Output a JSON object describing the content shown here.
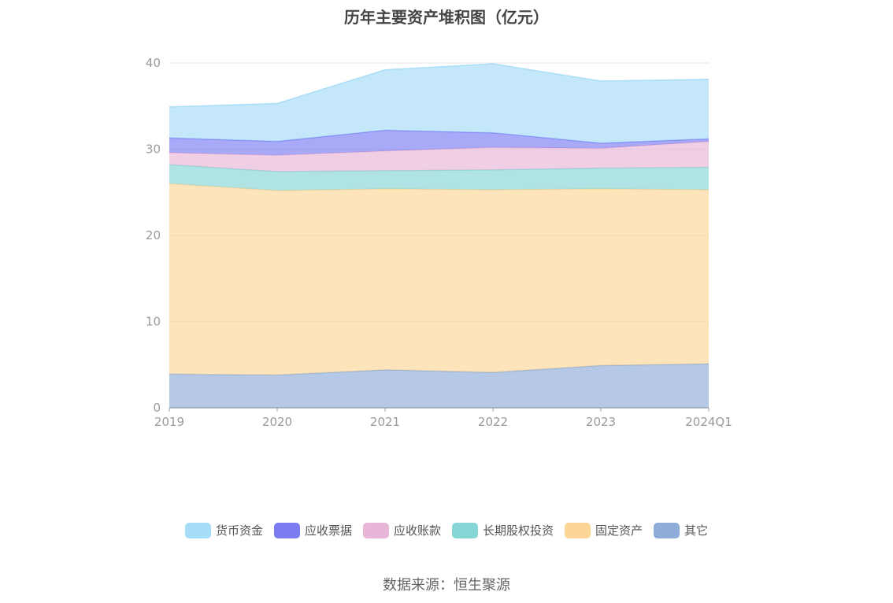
{
  "chart_data": {
    "type": "area",
    "stacked": true,
    "title": "历年主要资产堆积图（亿元）",
    "x": [
      "2019",
      "2020",
      "2021",
      "2022",
      "2023",
      "2024Q1"
    ],
    "ylim": [
      0,
      40
    ],
    "yticks": [
      "0",
      "10",
      "20",
      "30",
      "40"
    ],
    "grid": true,
    "legend_position": "bottom",
    "series": [
      {
        "name": "其它",
        "color": "#8eacd8",
        "values": [
          3.9,
          3.8,
          4.4,
          4.1,
          4.9,
          5.1
        ]
      },
      {
        "name": "固定资产",
        "color": "#fcd597",
        "values": [
          22.1,
          21.4,
          21.0,
          21.2,
          20.5,
          20.2
        ]
      },
      {
        "name": "长期股权投资",
        "color": "#86d6d6",
        "values": [
          2.2,
          2.2,
          2.1,
          2.3,
          2.4,
          2.6
        ]
      },
      {
        "name": "应收账款",
        "color": "#e8b6d6",
        "values": [
          1.4,
          1.9,
          2.3,
          2.6,
          2.3,
          3.0
        ]
      },
      {
        "name": "应收票据",
        "color": "#7b7cf2",
        "values": [
          1.7,
          1.6,
          2.4,
          1.7,
          0.6,
          0.3
        ]
      },
      {
        "name": "货币资金",
        "color": "#a5dcf7",
        "values": [
          3.6,
          4.4,
          7.0,
          8.0,
          7.2,
          6.9
        ]
      }
    ]
  },
  "legend_order": [
    5,
    4,
    3,
    2,
    1,
    0
  ],
  "source": "数据来源：恒生聚源"
}
